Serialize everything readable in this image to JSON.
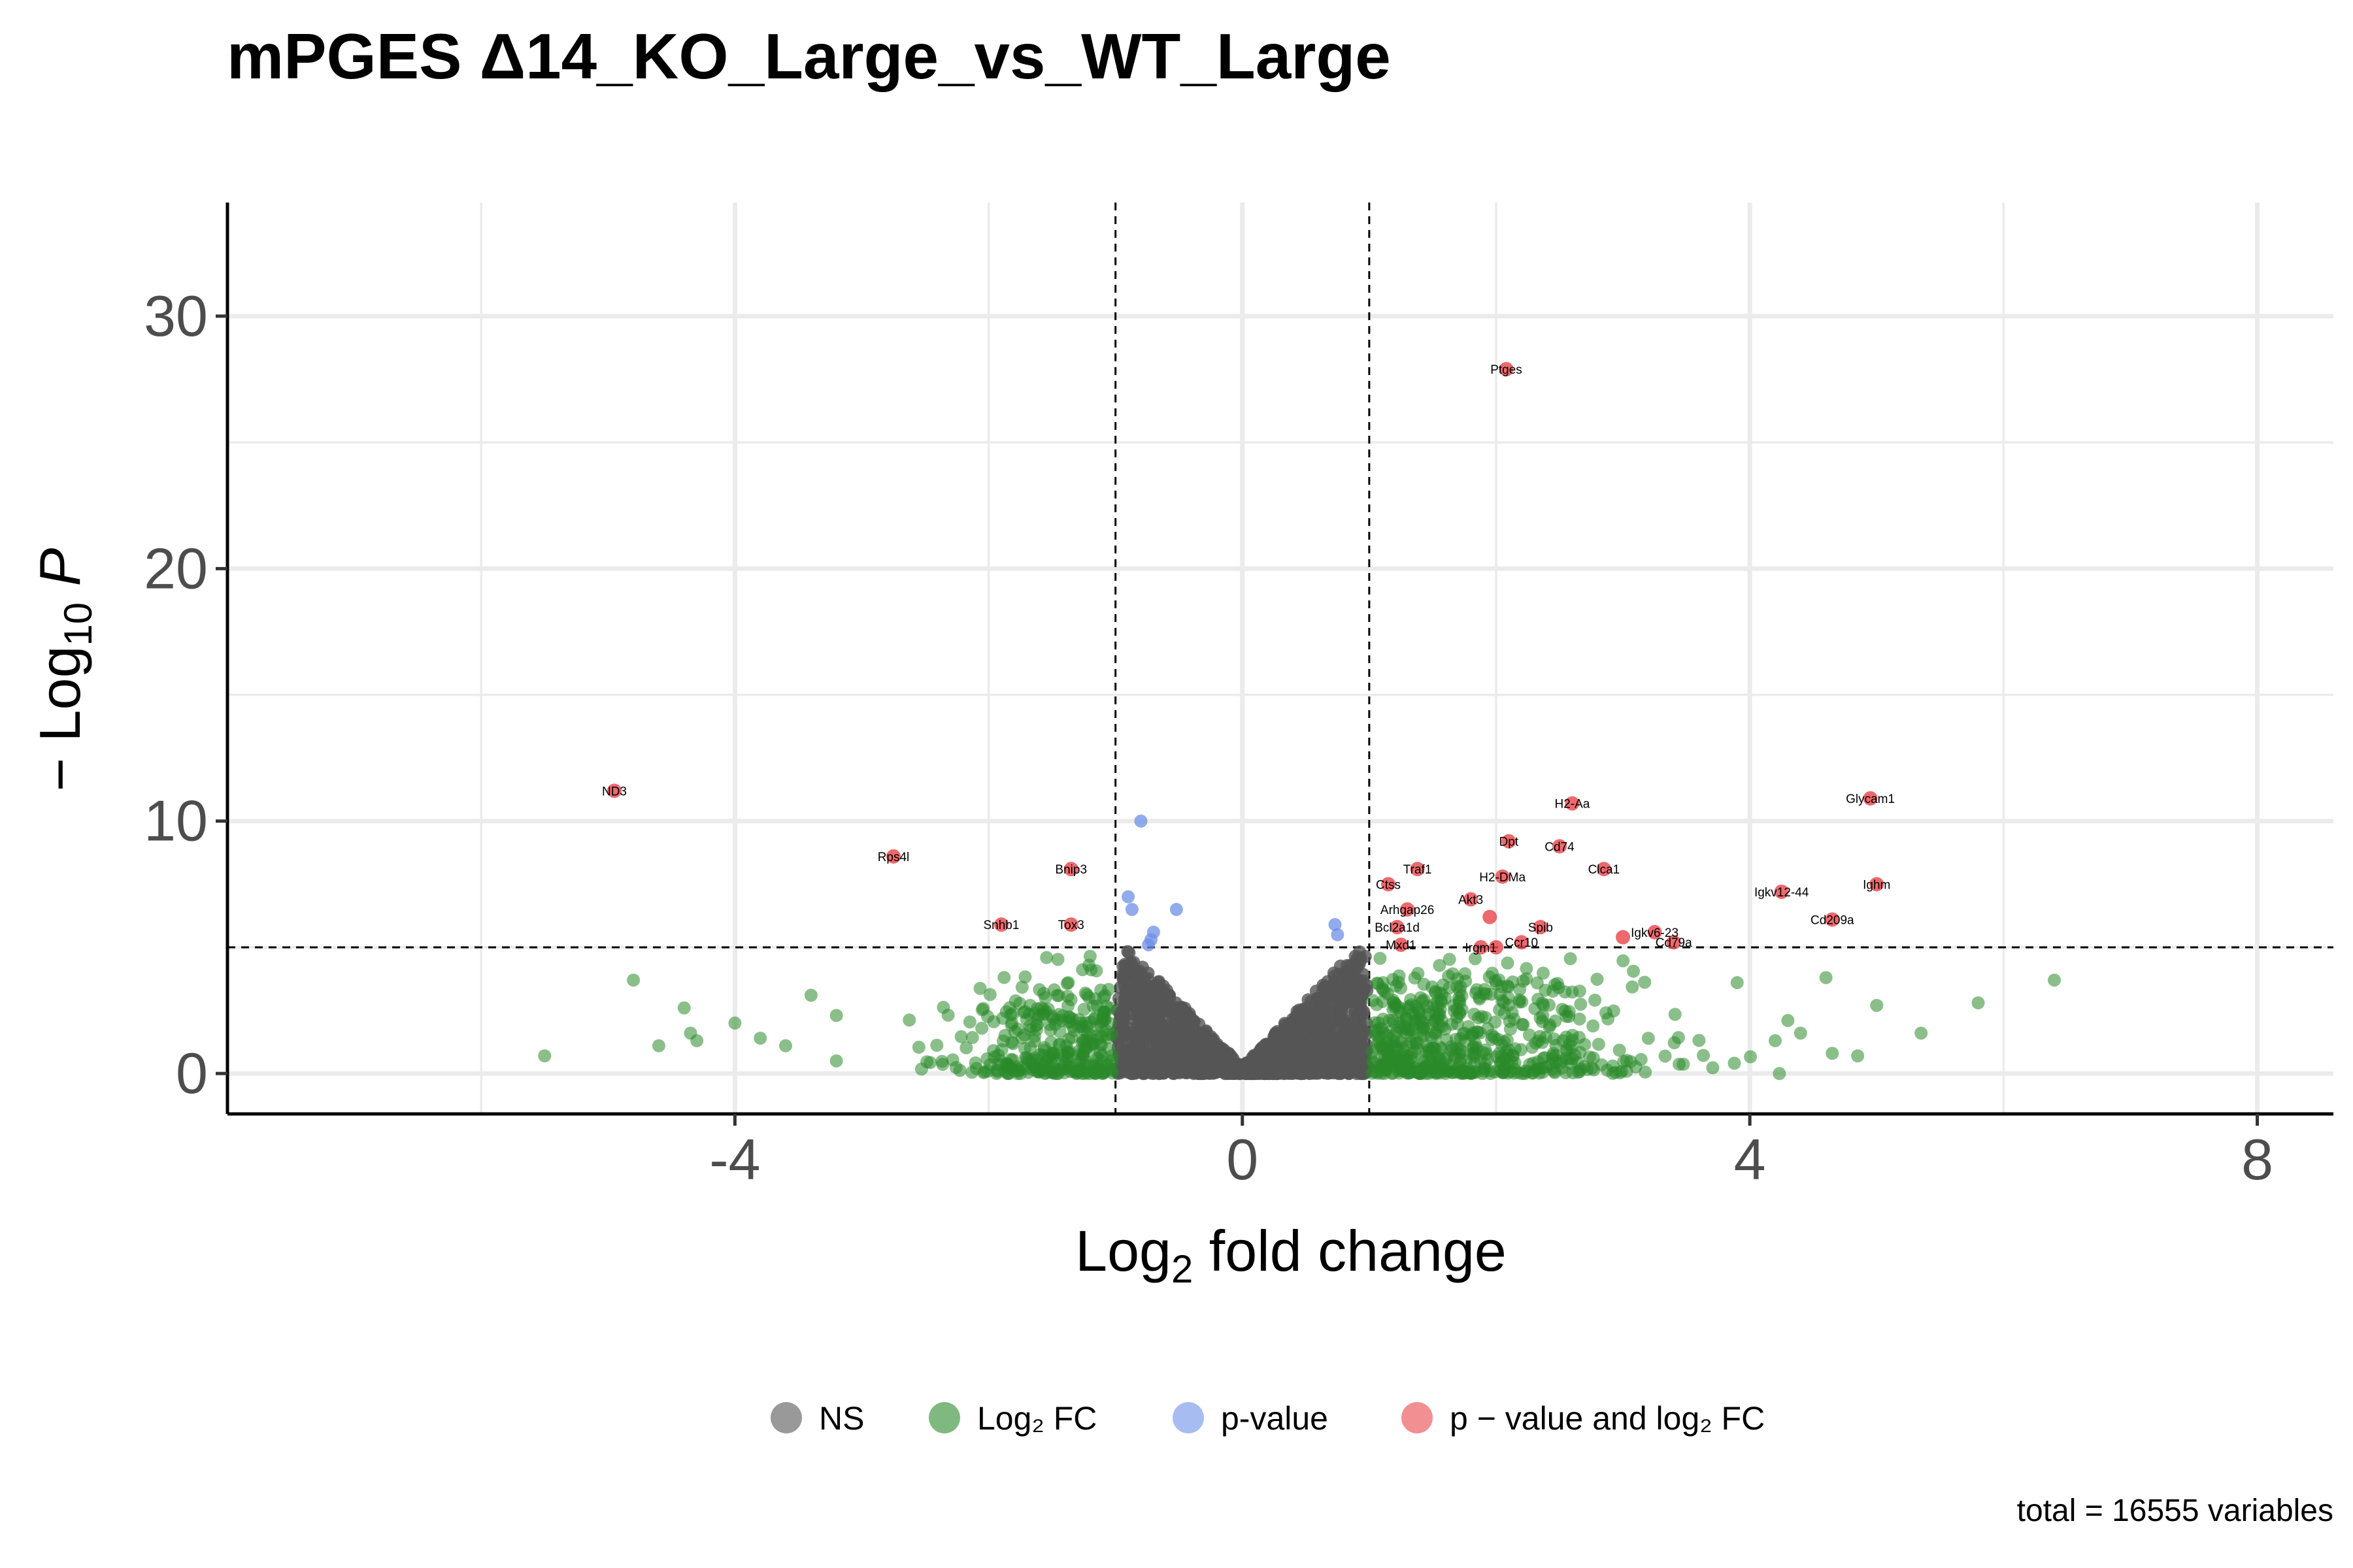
{
  "title": "mPGES Δ14_KO_Large_vs_WT_Large",
  "caption": "total = 16555 variables",
  "chart_data": {
    "type": "scatter",
    "title": "mPGES Δ14_KO_Large_vs_WT_Large",
    "xlabel": "Log₂ fold change",
    "ylabel": "−Log₁₀ P",
    "xlim": [
      -8,
      8.6
    ],
    "ylim": [
      -1.6,
      34.5
    ],
    "x_ticks": [
      "-4",
      "0",
      "4",
      "8"
    ],
    "x_tick_values": [
      -4,
      0,
      4,
      8
    ],
    "y_ticks": [
      "0",
      "10",
      "20",
      "30"
    ],
    "y_tick_values": [
      0,
      10,
      20,
      30
    ],
    "thresholds": {
      "log2fc": 1,
      "neg_log10_p": 5
    },
    "grid": true,
    "legend_position": "bottom",
    "legend": [
      "NS",
      "Log₂ FC",
      "p-value",
      "p − value and log₂ FC"
    ],
    "colors": {
      "ns": "#555555",
      "log2fc": "#2a8a2a",
      "pvalue": "#6d8fe6",
      "both": "#e8444a"
    },
    "total_variables": 16555,
    "labeled_points": [
      {
        "gene": "Ptges",
        "x": 2.08,
        "y": 27.9
      },
      {
        "gene": "ND3",
        "x": -4.95,
        "y": 11.2
      },
      {
        "gene": "Glycam1",
        "x": 4.95,
        "y": 10.9
      },
      {
        "gene": "H2-Aa",
        "x": 2.6,
        "y": 10.7
      },
      {
        "gene": "Dpt",
        "x": 2.1,
        "y": 9.2
      },
      {
        "gene": "Cd74",
        "x": 2.5,
        "y": 9.0
      },
      {
        "gene": "Rps4l",
        "x": -2.75,
        "y": 8.6
      },
      {
        "gene": "Bnip3",
        "x": -1.35,
        "y": 8.1
      },
      {
        "gene": "Traf1",
        "x": 1.38,
        "y": 8.1
      },
      {
        "gene": "Clca1",
        "x": 2.85,
        "y": 8.1
      },
      {
        "gene": "H2-DMa",
        "x": 2.05,
        "y": 7.8
      },
      {
        "gene": "Ctss",
        "x": 1.15,
        "y": 7.5
      },
      {
        "gene": "Ighm",
        "x": 5.0,
        "y": 7.5
      },
      {
        "gene": "Igkv12-44",
        "x": 4.25,
        "y": 7.2
      },
      {
        "gene": "Akt3",
        "x": 1.8,
        "y": 6.9
      },
      {
        "gene": "Arhgap26",
        "x": 1.3,
        "y": 6.5
      },
      {
        "gene": "Cd209a",
        "x": 4.65,
        "y": 6.1
      },
      {
        "gene": "Snhb1",
        "x": -1.9,
        "y": 5.9
      },
      {
        "gene": "Tox3",
        "x": -1.35,
        "y": 5.9
      },
      {
        "gene": "Spib",
        "x": 2.35,
        "y": 5.8
      },
      {
        "gene": "Bcl2a1d",
        "x": 1.22,
        "y": 5.8
      },
      {
        "gene": "Igkv6-23",
        "x": 3.25,
        "y": 5.6
      },
      {
        "gene": "Mxd1",
        "x": 1.25,
        "y": 5.1
      },
      {
        "gene": "Irgm1",
        "x": 1.88,
        "y": 5.0
      },
      {
        "gene": "Ccr10",
        "x": 2.2,
        "y": 5.2
      },
      {
        "gene": "Cd79a",
        "x": 3.4,
        "y": 5.2
      }
    ],
    "pvalue_only_points": [
      {
        "x": -0.8,
        "y": 10.0
      },
      {
        "x": -0.9,
        "y": 7.0
      },
      {
        "x": -0.87,
        "y": 6.5
      },
      {
        "x": -0.52,
        "y": 6.5
      },
      {
        "x": -0.7,
        "y": 5.6
      },
      {
        "x": -0.72,
        "y": 5.3
      },
      {
        "x": -0.74,
        "y": 5.1
      },
      {
        "x": 0.73,
        "y": 5.9
      },
      {
        "x": 0.75,
        "y": 5.5
      }
    ]
  }
}
